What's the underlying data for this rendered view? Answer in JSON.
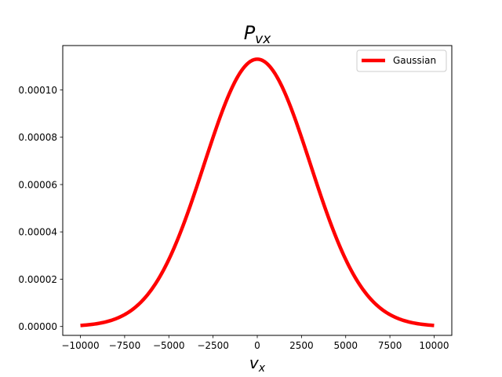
{
  "chart_data": {
    "type": "line",
    "title": {
      "base": "P",
      "sub": "vx"
    },
    "xlabel": {
      "base": "v",
      "sub": "x"
    },
    "ylabel": "",
    "xlim": [
      -11000,
      11000
    ],
    "ylim": [
      -3.75e-06,
      0.00011875
    ],
    "xticks": [
      -10000,
      -7500,
      -5000,
      -2500,
      0,
      2500,
      5000,
      7500,
      10000
    ],
    "xtick_labels": [
      "−10000",
      "−7500",
      "−5000",
      "−2500",
      "0",
      "2500",
      "5000",
      "7500",
      "10000"
    ],
    "yticks": [
      0,
      2e-05,
      4e-05,
      6e-05,
      8e-05,
      0.0001
    ],
    "ytick_labels": [
      "0.00000",
      "0.00002",
      "0.00004",
      "0.00006",
      "0.00008",
      "0.00010"
    ],
    "grid": false,
    "legend_position": "top-right",
    "series": [
      {
        "name": "Gaussian",
        "color": "#ff0000",
        "x": [
          -10000,
          -9000,
          -8000,
          -7000,
          -6000,
          -5000,
          -4000,
          -3000,
          -2000,
          -1000,
          0,
          1000,
          2000,
          3000,
          4000,
          5000,
          6000,
          7000,
          8000,
          9000,
          10000
        ],
        "y": [
          2e-06,
          3.9e-06,
          7.1e-06,
          1.23e-05,
          2e-05,
          3.05e-05,
          4.4e-05,
          6e-05,
          7.71e-05,
          9.3e-05,
          0.000113,
          9.3e-05,
          7.71e-05,
          6e-05,
          4.4e-05,
          3.05e-05,
          2e-05,
          1.23e-05,
          7.1e-06,
          3.9e-06,
          2e-06
        ]
      }
    ]
  }
}
